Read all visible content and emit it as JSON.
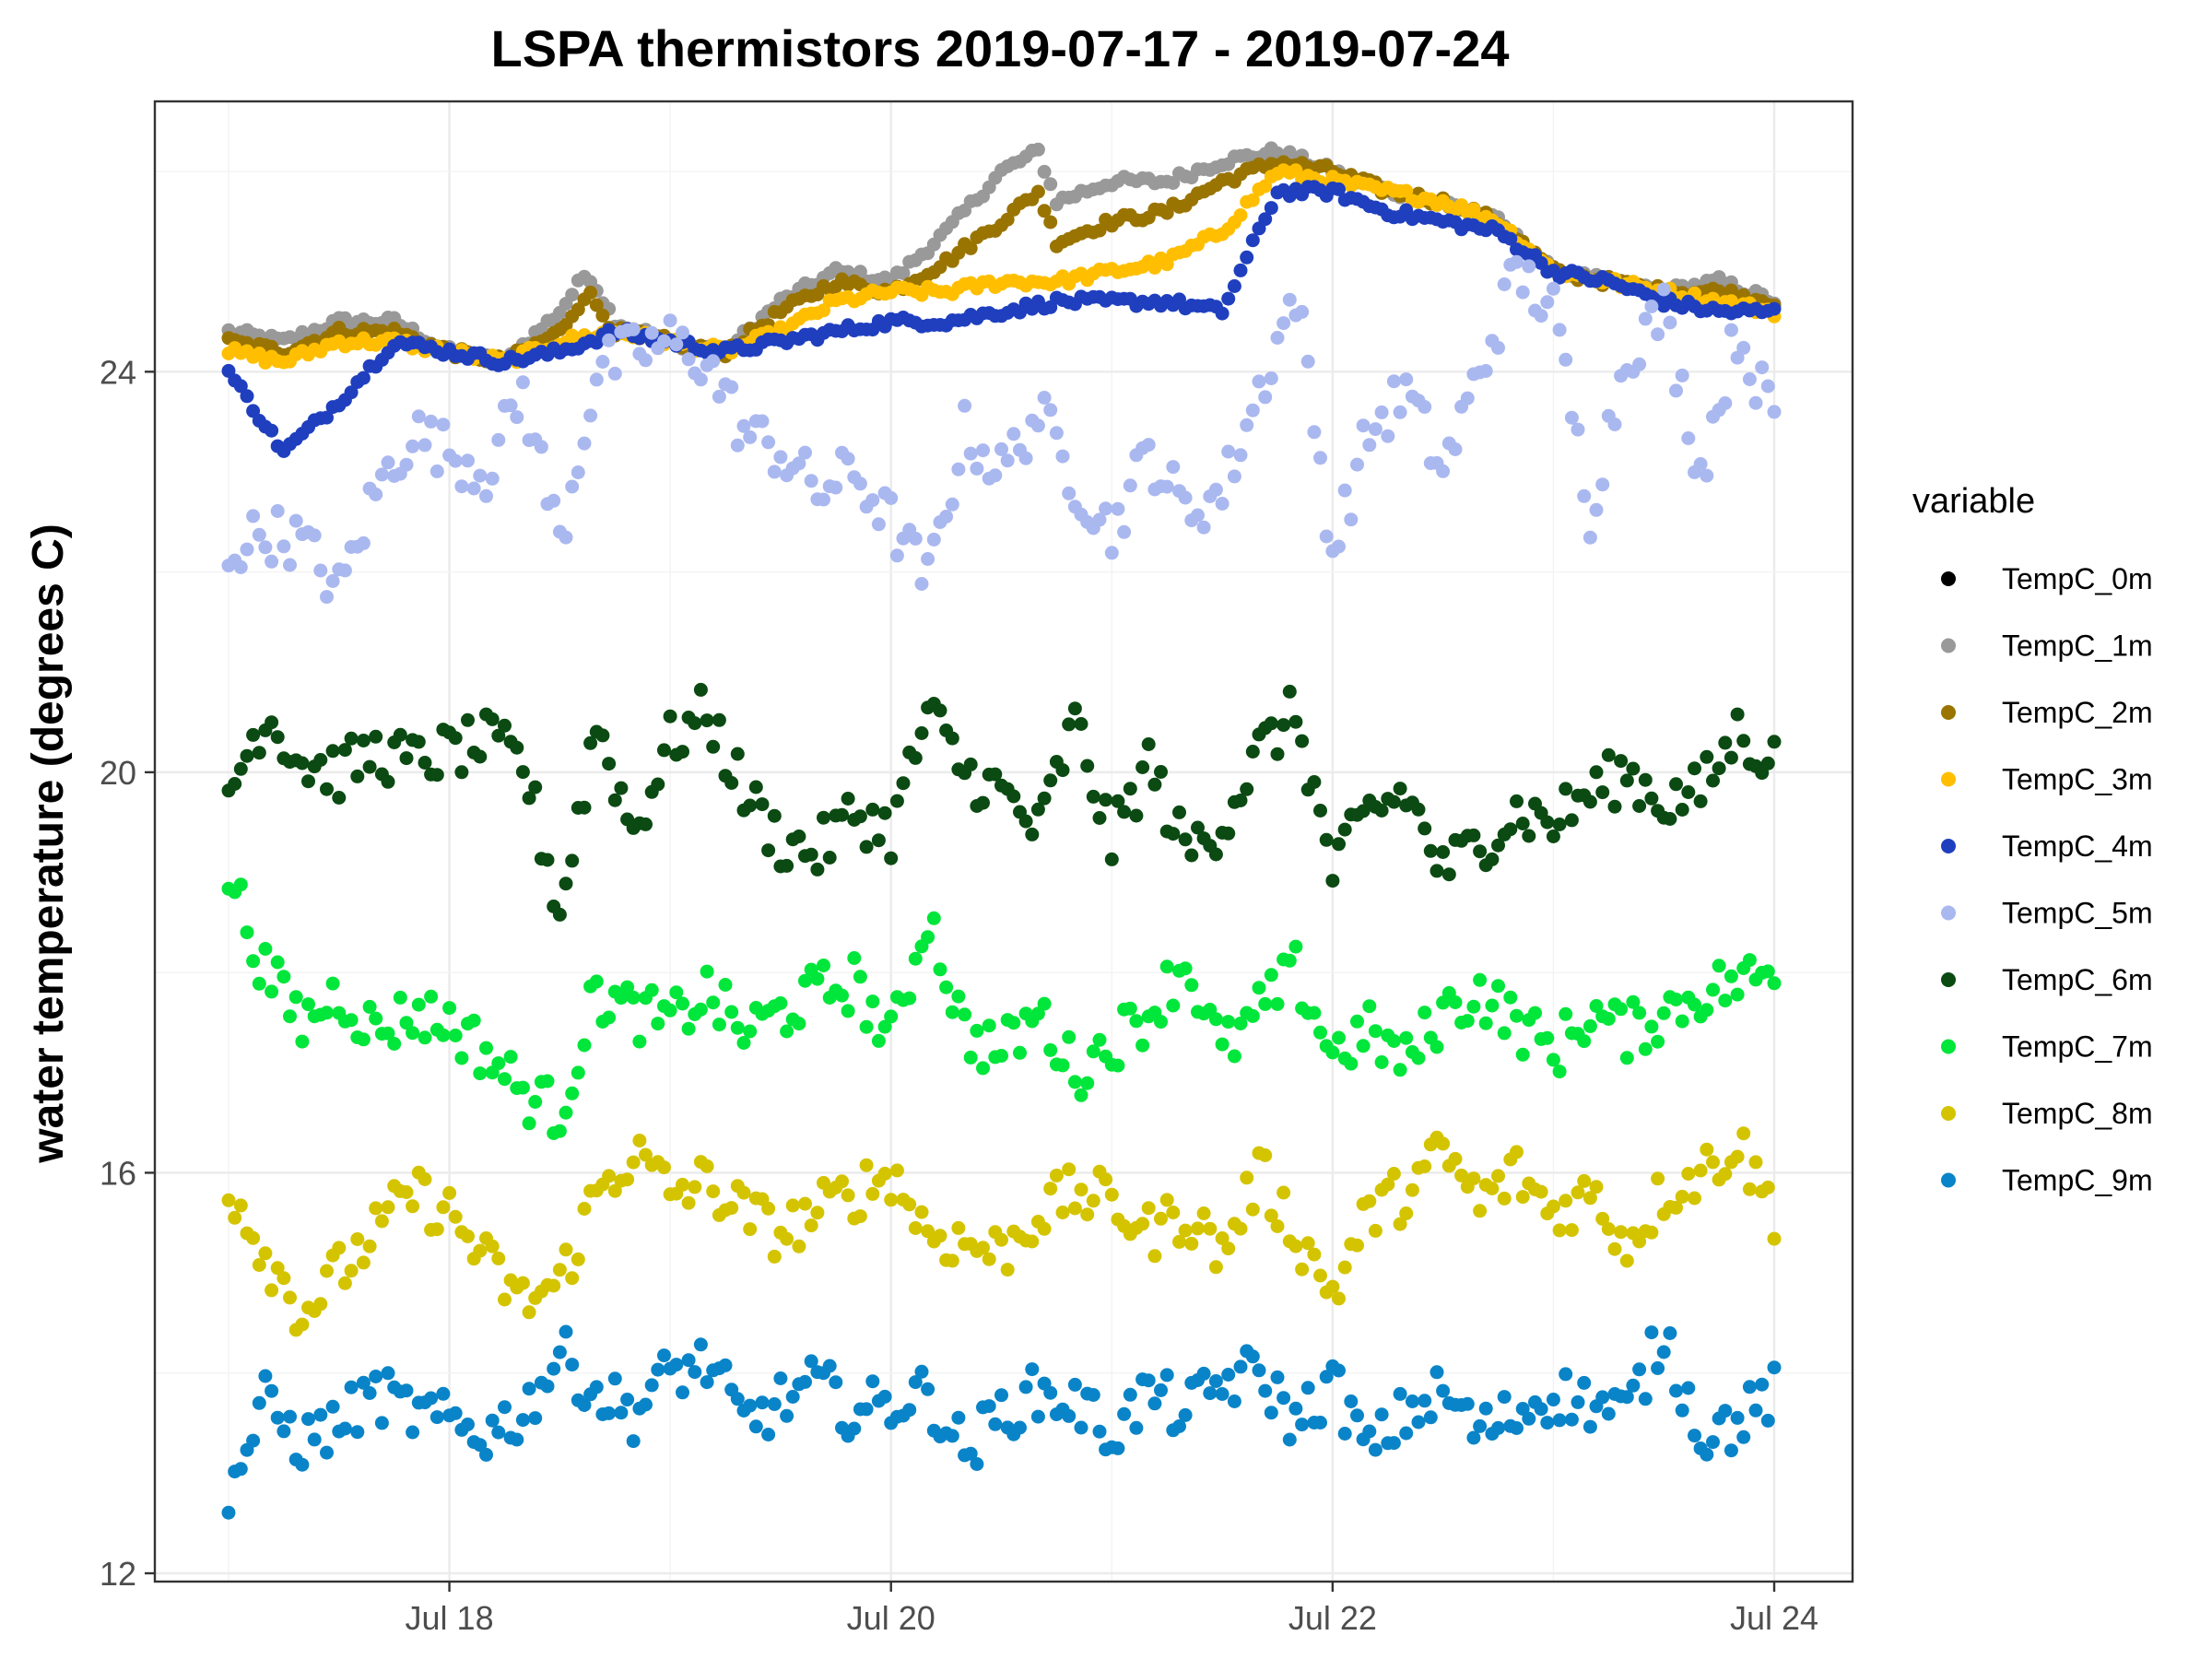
{
  "chart_data": {
    "type": "scatter",
    "title": "LSPA thermistors 2019-07-17 - 2019-07-24",
    "ylabel": "water temperature (degrees C)",
    "xlabel": "",
    "x_range": [
      "2019-07-17T00:00",
      "2019-07-24T00:00"
    ],
    "x_ticks": [
      {
        "value": "2019-07-18",
        "label": "Jul 18"
      },
      {
        "value": "2019-07-20",
        "label": "Jul 20"
      },
      {
        "value": "2019-07-22",
        "label": "Jul 22"
      },
      {
        "value": "2019-07-24",
        "label": "Jul 24"
      }
    ],
    "ylim": [
      12,
      26.7
    ],
    "y_ticks": [
      12,
      16,
      20,
      24
    ],
    "grid": true,
    "legend": {
      "title": "variable",
      "position": "right"
    },
    "series": [
      {
        "name": "TempC_0m",
        "color": "#000000",
        "x": [],
        "y": []
      },
      {
        "name": "TempC_1m",
        "color": "#999999",
        "x": [
          "2019-07-17T00:00",
          "2019-07-17T06:00",
          "2019-07-17T12:00",
          "2019-07-17T18:00",
          "2019-07-18T00:00",
          "2019-07-18T06:00",
          "2019-07-18T12:00",
          "2019-07-18T15:00",
          "2019-07-18T18:00",
          "2019-07-19T00:00",
          "2019-07-19T06:00",
          "2019-07-19T12:00",
          "2019-07-19T18:00",
          "2019-07-20T00:00",
          "2019-07-20T06:00",
          "2019-07-20T12:00",
          "2019-07-20T16:00",
          "2019-07-20T18:00",
          "2019-07-21T00:00",
          "2019-07-21T06:00",
          "2019-07-21T12:00",
          "2019-07-21T18:00",
          "2019-07-22T00:00",
          "2019-07-22T06:00",
          "2019-07-22T12:00",
          "2019-07-22T18:00",
          "2019-07-23T00:00",
          "2019-07-23T06:00",
          "2019-07-23T12:00",
          "2019-07-23T18:00",
          "2019-07-24T00:00"
        ],
        "y": [
          24.4,
          24.3,
          24.5,
          24.5,
          24.2,
          24.1,
          24.6,
          25.0,
          24.5,
          24.3,
          24.2,
          24.7,
          25.0,
          24.9,
          25.4,
          26.0,
          26.2,
          25.7,
          25.9,
          25.9,
          26.1,
          26.2,
          26.0,
          25.8,
          25.7,
          25.5,
          25.0,
          24.9,
          24.8,
          24.9,
          24.7
        ]
      },
      {
        "name": "TempC_2m",
        "color": "#9a7400",
        "x": [
          "2019-07-17T00:00",
          "2019-07-17T06:00",
          "2019-07-17T12:00",
          "2019-07-17T18:00",
          "2019-07-18T00:00",
          "2019-07-18T06:00",
          "2019-07-18T12:00",
          "2019-07-18T15:00",
          "2019-07-18T18:00",
          "2019-07-19T00:00",
          "2019-07-19T06:00",
          "2019-07-19T12:00",
          "2019-07-19T18:00",
          "2019-07-20T00:00",
          "2019-07-20T06:00",
          "2019-07-20T12:00",
          "2019-07-20T16:00",
          "2019-07-20T18:00",
          "2019-07-21T00:00",
          "2019-07-21T06:00",
          "2019-07-21T12:00",
          "2019-07-21T18:00",
          "2019-07-22T00:00",
          "2019-07-22T06:00",
          "2019-07-22T12:00",
          "2019-07-22T18:00",
          "2019-07-23T00:00",
          "2019-07-23T06:00",
          "2019-07-23T12:00",
          "2019-07-23T18:00",
          "2019-07-24T00:00"
        ],
        "y": [
          24.3,
          24.2,
          24.4,
          24.4,
          24.2,
          24.1,
          24.4,
          24.8,
          24.4,
          24.3,
          24.2,
          24.6,
          24.9,
          24.8,
          25.1,
          25.5,
          25.8,
          25.3,
          25.5,
          25.6,
          25.9,
          26.1,
          26.0,
          25.8,
          25.7,
          25.5,
          25.0,
          24.9,
          24.8,
          24.8,
          24.7
        ]
      },
      {
        "name": "TempC_3m",
        "color": "#ffbf00",
        "x": [
          "2019-07-17T00:00",
          "2019-07-17T06:00",
          "2019-07-17T12:00",
          "2019-07-17T18:00",
          "2019-07-18T00:00",
          "2019-07-18T06:00",
          "2019-07-18T12:00",
          "2019-07-18T18:00",
          "2019-07-19T00:00",
          "2019-07-19T06:00",
          "2019-07-19T12:00",
          "2019-07-19T18:00",
          "2019-07-20T00:00",
          "2019-07-20T06:00",
          "2019-07-20T12:00",
          "2019-07-20T18:00",
          "2019-07-21T00:00",
          "2019-07-21T06:00",
          "2019-07-21T12:00",
          "2019-07-21T18:00",
          "2019-07-22T00:00",
          "2019-07-22T06:00",
          "2019-07-22T12:00",
          "2019-07-22T18:00",
          "2019-07-23T00:00",
          "2019-07-23T06:00",
          "2019-07-23T12:00",
          "2019-07-23T18:00",
          "2019-07-24T00:00"
        ],
        "y": [
          24.2,
          24.1,
          24.3,
          24.3,
          24.2,
          24.1,
          24.3,
          24.4,
          24.3,
          24.2,
          24.4,
          24.7,
          24.8,
          24.8,
          24.9,
          24.9,
          25.0,
          25.1,
          25.4,
          26.0,
          25.9,
          25.8,
          25.7,
          25.5,
          25.0,
          24.9,
          24.8,
          24.7,
          24.6
        ]
      },
      {
        "name": "TempC_4m",
        "color": "#1f3fbf",
        "x": [
          "2019-07-17T00:00",
          "2019-07-17T06:00",
          "2019-07-17T12:00",
          "2019-07-17T18:00",
          "2019-07-18T00:00",
          "2019-07-18T06:00",
          "2019-07-18T12:00",
          "2019-07-18T18:00",
          "2019-07-19T00:00",
          "2019-07-19T06:00",
          "2019-07-19T12:00",
          "2019-07-19T18:00",
          "2019-07-20T00:00",
          "2019-07-20T06:00",
          "2019-07-20T12:00",
          "2019-07-20T18:00",
          "2019-07-21T00:00",
          "2019-07-21T06:00",
          "2019-07-21T12:00",
          "2019-07-21T18:00",
          "2019-07-22T00:00",
          "2019-07-22T06:00",
          "2019-07-22T12:00",
          "2019-07-22T18:00",
          "2019-07-23T00:00",
          "2019-07-23T06:00",
          "2019-07-23T12:00",
          "2019-07-23T18:00",
          "2019-07-24T00:00"
        ],
        "y": [
          24.0,
          23.2,
          23.7,
          24.3,
          24.2,
          24.1,
          24.2,
          24.4,
          24.3,
          24.2,
          24.3,
          24.4,
          24.5,
          24.5,
          24.6,
          24.7,
          24.7,
          24.7,
          24.6,
          25.8,
          25.8,
          25.6,
          25.5,
          25.4,
          25.0,
          24.9,
          24.7,
          24.6,
          24.6
        ]
      },
      {
        "name": "TempC_5m",
        "color": "#aab8f0",
        "x": [
          "2019-07-17T00:00",
          "2019-07-17T04:00",
          "2019-07-17T08:00",
          "2019-07-17T12:00",
          "2019-07-17T16:00",
          "2019-07-17T20:00",
          "2019-07-18T00:00",
          "2019-07-18T04:00",
          "2019-07-18T08:00",
          "2019-07-18T12:00",
          "2019-07-18T16:00",
          "2019-07-18T20:00",
          "2019-07-19T00:00",
          "2019-07-19T04:00",
          "2019-07-19T08:00",
          "2019-07-19T12:00",
          "2019-07-19T16:00",
          "2019-07-19T20:00",
          "2019-07-20T00:00",
          "2019-07-20T04:00",
          "2019-07-20T08:00",
          "2019-07-20T12:00",
          "2019-07-20T16:00",
          "2019-07-20T20:00",
          "2019-07-21T00:00",
          "2019-07-21T04:00",
          "2019-07-21T08:00",
          "2019-07-21T12:00",
          "2019-07-21T16:00",
          "2019-07-21T20:00",
          "2019-07-22T00:00",
          "2019-07-22T04:00",
          "2019-07-22T08:00",
          "2019-07-22T12:00",
          "2019-07-22T16:00",
          "2019-07-22T20:00",
          "2019-07-23T00:00",
          "2019-07-23T04:00",
          "2019-07-23T08:00",
          "2019-07-23T12:00",
          "2019-07-23T16:00",
          "2019-07-23T20:00",
          "2019-07-24T00:00"
        ],
        "y": [
          22.2,
          22.4,
          22.3,
          21.8,
          22.8,
          23.4,
          23.2,
          23.0,
          23.8,
          22.3,
          24.0,
          24.2,
          24.3,
          24.1,
          23.4,
          23.2,
          22.8,
          23.0,
          22.5,
          21.9,
          23.4,
          23.0,
          23.6,
          22.9,
          22.4,
          23.2,
          22.6,
          22.8,
          23.8,
          24.8,
          22.2,
          23.4,
          23.8,
          23.0,
          24.0,
          25.0,
          24.6,
          22.6,
          24.2,
          24.6,
          23.0,
          24.4,
          23.5
        ]
      },
      {
        "name": "TempC_6m",
        "color": "#0b4a12",
        "x": [
          "2019-07-17T00:00",
          "2019-07-17T04:00",
          "2019-07-17T08:00",
          "2019-07-17T12:00",
          "2019-07-17T16:00",
          "2019-07-17T20:00",
          "2019-07-18T00:00",
          "2019-07-18T04:00",
          "2019-07-18T08:00",
          "2019-07-18T12:00",
          "2019-07-18T16:00",
          "2019-07-18T20:00",
          "2019-07-19T00:00",
          "2019-07-19T04:00",
          "2019-07-19T08:00",
          "2019-07-19T12:00",
          "2019-07-19T16:00",
          "2019-07-19T20:00",
          "2019-07-20T00:00",
          "2019-07-20T04:00",
          "2019-07-20T08:00",
          "2019-07-20T12:00",
          "2019-07-20T16:00",
          "2019-07-20T20:00",
          "2019-07-21T00:00",
          "2019-07-21T04:00",
          "2019-07-21T08:00",
          "2019-07-21T12:00",
          "2019-07-21T16:00",
          "2019-07-21T20:00",
          "2019-07-22T00:00",
          "2019-07-22T04:00",
          "2019-07-22T08:00",
          "2019-07-22T12:00",
          "2019-07-22T16:00",
          "2019-07-22T20:00",
          "2019-07-23T00:00",
          "2019-07-23T04:00",
          "2019-07-23T08:00",
          "2019-07-23T12:00",
          "2019-07-23T16:00",
          "2019-07-23T20:00",
          "2019-07-24T00:00"
        ],
        "y": [
          19.8,
          20.6,
          20.1,
          20.0,
          20.2,
          20.1,
          20.2,
          20.3,
          20.1,
          18.6,
          20.5,
          19.4,
          20.3,
          20.6,
          19.8,
          19.3,
          19.2,
          19.6,
          19.4,
          20.6,
          20.0,
          19.8,
          19.4,
          20.5,
          19.3,
          20.1,
          19.2,
          19.5,
          20.2,
          20.6,
          19.0,
          19.6,
          19.8,
          19.0,
          19.3,
          19.6,
          19.5,
          19.8,
          20.0,
          19.7,
          19.8,
          20.4,
          20.1
        ]
      },
      {
        "name": "TempC_7m",
        "color": "#00e63a",
        "x": [
          "2019-07-17T00:00",
          "2019-07-17T04:00",
          "2019-07-17T08:00",
          "2019-07-17T12:00",
          "2019-07-17T16:00",
          "2019-07-17T20:00",
          "2019-07-18T00:00",
          "2019-07-18T04:00",
          "2019-07-18T08:00",
          "2019-07-18T12:00",
          "2019-07-18T16:00",
          "2019-07-18T20:00",
          "2019-07-19T00:00",
          "2019-07-19T04:00",
          "2019-07-19T08:00",
          "2019-07-19T12:00",
          "2019-07-19T16:00",
          "2019-07-19T20:00",
          "2019-07-20T00:00",
          "2019-07-20T04:00",
          "2019-07-20T08:00",
          "2019-07-20T12:00",
          "2019-07-20T16:00",
          "2019-07-20T20:00",
          "2019-07-21T00:00",
          "2019-07-21T04:00",
          "2019-07-21T08:00",
          "2019-07-21T12:00",
          "2019-07-21T16:00",
          "2019-07-21T20:00",
          "2019-07-22T00:00",
          "2019-07-22T04:00",
          "2019-07-22T08:00",
          "2019-07-22T12:00",
          "2019-07-22T16:00",
          "2019-07-22T20:00",
          "2019-07-23T00:00",
          "2019-07-23T04:00",
          "2019-07-23T08:00",
          "2019-07-23T12:00",
          "2019-07-23T16:00",
          "2019-07-23T20:00",
          "2019-07-24T00:00"
        ],
        "y": [
          19.0,
          18.0,
          17.5,
          17.8,
          17.4,
          17.6,
          17.5,
          17.2,
          16.8,
          16.6,
          17.8,
          17.6,
          17.5,
          17.8,
          17.4,
          17.6,
          17.8,
          17.9,
          17.3,
          18.6,
          17.4,
          17.2,
          17.6,
          17.0,
          17.3,
          17.6,
          18.1,
          17.2,
          17.6,
          18.0,
          17.2,
          17.4,
          17.1,
          17.6,
          17.8,
          17.5,
          17.2,
          17.6,
          17.4,
          17.6,
          17.8,
          17.9,
          18.0
        ]
      },
      {
        "name": "TempC_8m",
        "color": "#d4c400",
        "x": [
          "2019-07-17T00:00",
          "2019-07-17T04:00",
          "2019-07-17T08:00",
          "2019-07-17T12:00",
          "2019-07-17T16:00",
          "2019-07-17T20:00",
          "2019-07-18T00:00",
          "2019-07-18T04:00",
          "2019-07-18T08:00",
          "2019-07-18T12:00",
          "2019-07-18T16:00",
          "2019-07-18T20:00",
          "2019-07-19T00:00",
          "2019-07-19T04:00",
          "2019-07-19T08:00",
          "2019-07-19T12:00",
          "2019-07-19T16:00",
          "2019-07-19T20:00",
          "2019-07-20T00:00",
          "2019-07-20T04:00",
          "2019-07-20T08:00",
          "2019-07-20T12:00",
          "2019-07-20T16:00",
          "2019-07-20T20:00",
          "2019-07-21T00:00",
          "2019-07-21T04:00",
          "2019-07-21T08:00",
          "2019-07-21T12:00",
          "2019-07-21T16:00",
          "2019-07-21T20:00",
          "2019-07-22T00:00",
          "2019-07-22T04:00",
          "2019-07-22T08:00",
          "2019-07-22T12:00",
          "2019-07-22T16:00",
          "2019-07-22T20:00",
          "2019-07-23T00:00",
          "2019-07-23T04:00",
          "2019-07-23T08:00",
          "2019-07-23T12:00",
          "2019-07-23T16:00",
          "2019-07-23T20:00",
          "2019-07-24T00:00"
        ],
        "y": [
          15.9,
          15.2,
          14.6,
          15.0,
          15.4,
          15.8,
          15.6,
          15.1,
          14.7,
          14.9,
          15.8,
          16.2,
          15.8,
          15.9,
          15.6,
          15.4,
          15.6,
          15.8,
          16.0,
          15.4,
          15.3,
          15.2,
          15.6,
          15.8,
          15.7,
          15.4,
          15.6,
          15.2,
          16.0,
          15.4,
          14.8,
          15.6,
          15.8,
          16.2,
          15.7,
          16.0,
          15.6,
          15.8,
          15.3,
          15.8,
          16.0,
          16.3,
          15.6
        ]
      },
      {
        "name": "TempC_9m",
        "color": "#0a84c8",
        "x": [
          "2019-07-17T00:00",
          "2019-07-17T04:00",
          "2019-07-17T08:00",
          "2019-07-17T12:00",
          "2019-07-17T16:00",
          "2019-07-17T20:00",
          "2019-07-18T00:00",
          "2019-07-18T04:00",
          "2019-07-18T08:00",
          "2019-07-18T12:00",
          "2019-07-18T16:00",
          "2019-07-18T20:00",
          "2019-07-19T00:00",
          "2019-07-19T04:00",
          "2019-07-19T08:00",
          "2019-07-19T12:00",
          "2019-07-19T16:00",
          "2019-07-19T20:00",
          "2019-07-20T00:00",
          "2019-07-20T04:00",
          "2019-07-20T08:00",
          "2019-07-20T12:00",
          "2019-07-20T16:00",
          "2019-07-20T20:00",
          "2019-07-21T00:00",
          "2019-07-21T04:00",
          "2019-07-21T08:00",
          "2019-07-21T12:00",
          "2019-07-21T16:00",
          "2019-07-21T20:00",
          "2019-07-22T00:00",
          "2019-07-22T04:00",
          "2019-07-22T08:00",
          "2019-07-22T12:00",
          "2019-07-22T16:00",
          "2019-07-22T20:00",
          "2019-07-23T00:00",
          "2019-07-23T04:00",
          "2019-07-23T08:00",
          "2019-07-23T12:00",
          "2019-07-23T16:00",
          "2019-07-23T20:00",
          "2019-07-24T00:00"
        ],
        "y": [
          12.8,
          13.7,
          13.3,
          13.5,
          13.8,
          13.6,
          13.5,
          13.4,
          13.6,
          14.2,
          13.8,
          13.6,
          14.0,
          14.1,
          13.5,
          13.7,
          13.9,
          13.6,
          13.7,
          13.8,
          13.2,
          13.6,
          13.8,
          13.7,
          13.4,
          13.8,
          13.6,
          13.9,
          14.0,
          13.5,
          13.9,
          13.2,
          13.6,
          13.8,
          13.4,
          13.6,
          13.8,
          13.7,
          13.6,
          14.4,
          13.4,
          13.5,
          13.8
        ]
      }
    ]
  }
}
